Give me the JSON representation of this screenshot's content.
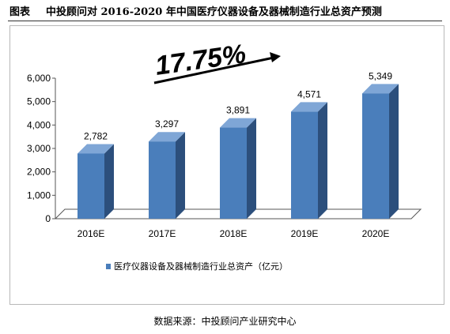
{
  "figure": {
    "label": "图表",
    "title": "中投顾问对 2016-2020 年中国医疗仪器设备及器械制造行业总资产预测"
  },
  "growth_annotation": {
    "text": "17.75%"
  },
  "source_note": "数据来源：中投顾问产业研究中心",
  "colors": {
    "bar_front": "#4a7ebb",
    "bar_side": "#2c4f7c",
    "bar_top": "#7fa6d6"
  },
  "chart_data": {
    "type": "bar",
    "title": "",
    "xlabel": "",
    "ylabel": "",
    "categories": [
      "2016E",
      "2017E",
      "2018E",
      "2019E",
      "2020E"
    ],
    "series": [
      {
        "name": "医疗仪器设备及器械制造行业总资产（亿元）",
        "values": [
          2782,
          3297,
          3891,
          4571,
          5349
        ],
        "data_labels": [
          "2,782",
          "3,297",
          "3,891",
          "4,571",
          "5,349"
        ]
      }
    ],
    "ylim": [
      0,
      6000
    ],
    "yticks": [
      0,
      1000,
      2000,
      3000,
      4000,
      5000,
      6000
    ],
    "ytick_labels": [
      "0",
      "1,000",
      "2,000",
      "3,000",
      "4,000",
      "5,000",
      "6,000"
    ],
    "grid": false,
    "legend_position": "bottom"
  }
}
